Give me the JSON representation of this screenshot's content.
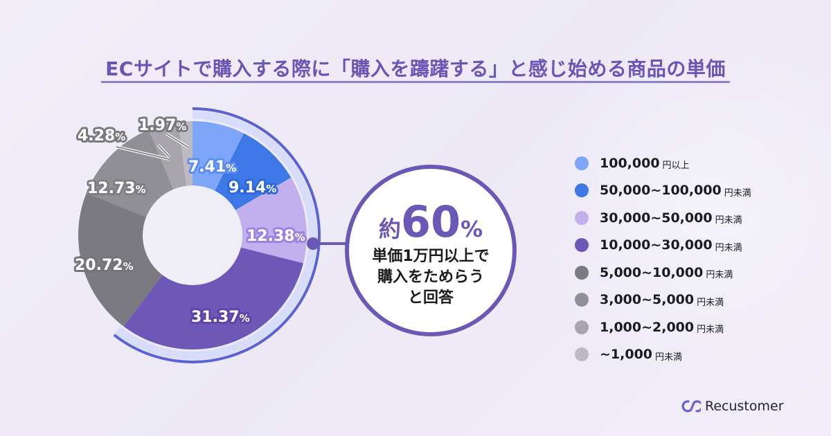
{
  "title": "ECサイトで購入する際に「購入を躊躇する」と感じ始める商品の単価",
  "chart_data": {
    "type": "pie",
    "variant": "donut",
    "title": "ECサイトで購入する際に「購入を躊躇する」と感じ始める商品の単価",
    "categories": [
      "100,000円以上",
      "50,000~100,000円未満",
      "30,000~50,000円未満",
      "10,000~30,000円未満",
      "5,000~10,000円未満",
      "3,000~5,000円未満",
      "1,000~2,000円未満",
      "~1,000円未満"
    ],
    "values": [
      7.41,
      9.14,
      12.38,
      31.37,
      20.72,
      12.73,
      4.28,
      1.97
    ],
    "unit": "%",
    "colors": [
      "#7ea6f8",
      "#3d78e6",
      "#c2b0ee",
      "#6d58b8",
      "#7b7a80",
      "#918f96",
      "#a7a4ab",
      "#bdbbc1"
    ],
    "legend_position": "right",
    "highlight": {
      "categories_count": 4,
      "sum_label": "約60%",
      "note": "単価1万円以上で購入をためらうと回答"
    }
  },
  "slice_labels": [
    {
      "value": "7.41",
      "pct": "%"
    },
    {
      "value": "9.14",
      "pct": "%"
    },
    {
      "value": "12.38",
      "pct": "%"
    },
    {
      "value": "31.37",
      "pct": "%"
    },
    {
      "value": "20.72",
      "pct": "%"
    },
    {
      "value": "12.73",
      "pct": "%"
    },
    {
      "value": "4.28",
      "pct": "%"
    },
    {
      "value": "1.97",
      "pct": "%"
    }
  ],
  "callout": {
    "prefix": "約",
    "number": "60",
    "suffix": "%",
    "lines": [
      "単価1万円以上で",
      "購入をためらう",
      "と回答"
    ]
  },
  "legend": [
    {
      "range": "100,000",
      "unit": "円以上",
      "color": "#7ea6f8"
    },
    {
      "range": "50,000~100,000",
      "unit": "円未満",
      "color": "#3d78e6"
    },
    {
      "range": "30,000~50,000",
      "unit": "円未満",
      "color": "#c2b0ee"
    },
    {
      "range": "10,000~30,000",
      "unit": "円未満",
      "color": "#6d58b8"
    },
    {
      "range": "5,000~10,000",
      "unit": "円未満",
      "color": "#7b7a80"
    },
    {
      "range": "3,000~5,000",
      "unit": "円未満",
      "color": "#918f96"
    },
    {
      "range": "1,000~2,000",
      "unit": "円未満",
      "color": "#a7a4ab"
    },
    {
      "range": "~1,000",
      "unit": "円未満",
      "color": "#bdbbc1"
    }
  ],
  "brand": {
    "name": "Recustomer"
  }
}
